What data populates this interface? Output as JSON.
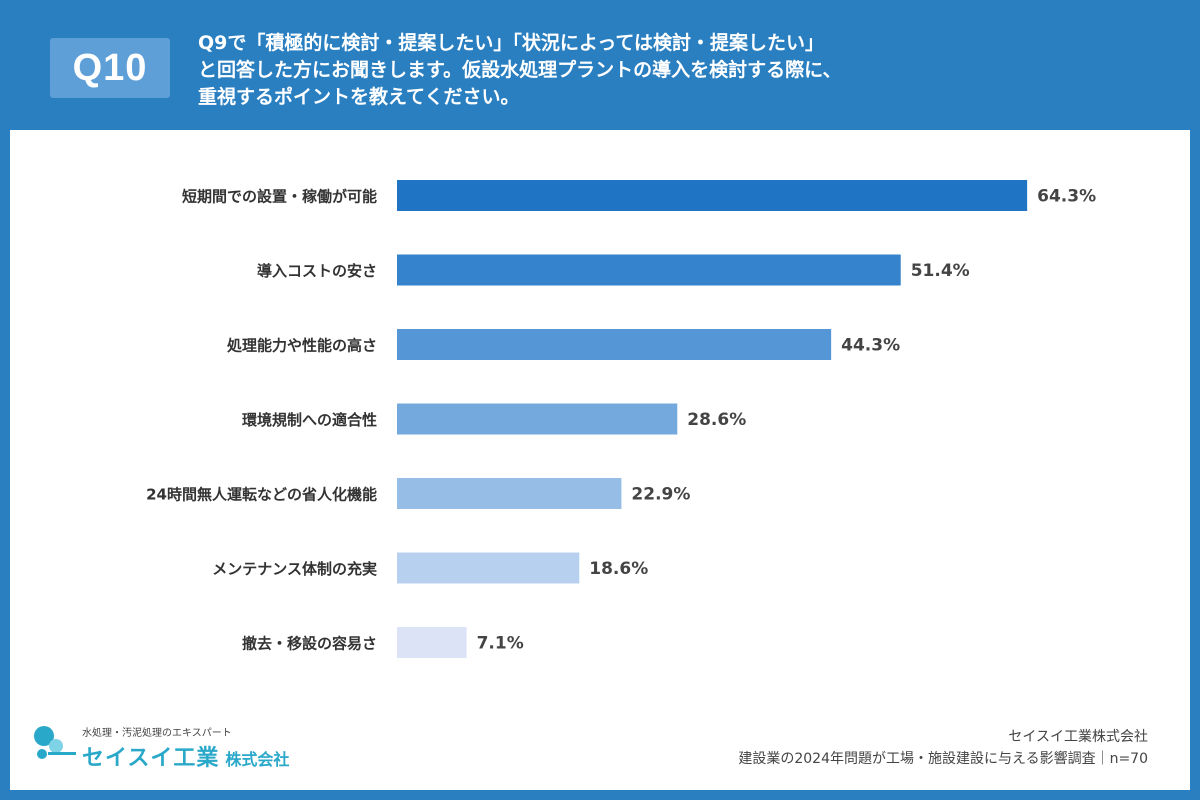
{
  "header": {
    "badge": "Q10",
    "question_lines": [
      "Q9で「積極的に検討・提案したい」「状況によっては検討・提案したい」",
      "と回答した方にお聞きします。仮設水処理プラントの導入を検討する際に、",
      "重視するポイントを教えてください。"
    ]
  },
  "chart_data": {
    "type": "bar",
    "orientation": "horizontal",
    "categories": [
      "短期間での設置・稼働が可能",
      "導入コストの安さ",
      "処理能力や性能の高さ",
      "環境規制への適合性",
      "24時間無人運転などの省人化機能",
      "メンテナンス体制の充実",
      "撤去・移設の容易さ"
    ],
    "values": [
      64.3,
      51.4,
      44.3,
      28.6,
      22.9,
      18.6,
      7.1
    ],
    "value_labels": [
      "64.3%",
      "51.4%",
      "44.3%",
      "28.6%",
      "22.9%",
      "18.6%",
      "7.1%"
    ],
    "colors": [
      "#1f74c4",
      "#3583cc",
      "#5597d6",
      "#74a9de",
      "#95bde6",
      "#b8d0ef",
      "#dde3f6"
    ],
    "xlim": [
      0,
      100
    ],
    "grid": false,
    "legend": "none"
  },
  "footer": {
    "company": "セイスイ工業株式会社",
    "survey": "建設業の2024年問題が工場・施設建設に与える影響調査｜n=70"
  },
  "logo": {
    "tagline": "水処理・汚泥処理のエキスパート",
    "name": "セイスイ工業",
    "suffix": "株式会社",
    "colors": [
      "#2aa8c9",
      "#7fd3e6"
    ]
  }
}
